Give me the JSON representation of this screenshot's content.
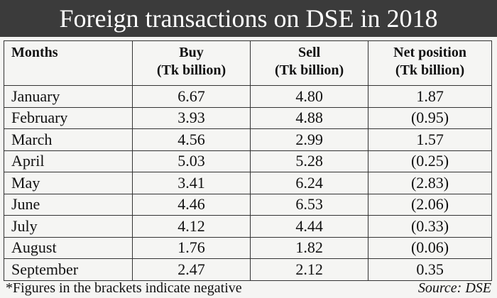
{
  "header": {
    "title": "Foreign transactions on DSE in 2018"
  },
  "table": {
    "columns": [
      [
        "Months"
      ],
      [
        "Buy",
        "(Tk billion)"
      ],
      [
        "Sell",
        "(Tk billion)"
      ],
      [
        "Net position",
        "(Tk billion)"
      ]
    ],
    "rows": [
      [
        "January",
        "6.67",
        "4.80",
        "1.87"
      ],
      [
        "February",
        "3.93",
        "4.88",
        "(0.95)"
      ],
      [
        "March",
        "4.56",
        "2.99",
        "1.57"
      ],
      [
        "April",
        "5.03",
        "5.28",
        "(0.25)"
      ],
      [
        "May",
        "3.41",
        "6.24",
        "(2.83)"
      ],
      [
        "June",
        "4.46",
        "6.53",
        "(2.06)"
      ],
      [
        "July",
        "4.12",
        "4.44",
        "(0.33)"
      ],
      [
        "August",
        "1.76",
        "1.82",
        "(0.06)"
      ],
      [
        "September",
        "2.47",
        "2.12",
        "0.35"
      ]
    ]
  },
  "footer": {
    "note": "*Figures in the brackets indicate negative",
    "source": "Source: DSE"
  }
}
